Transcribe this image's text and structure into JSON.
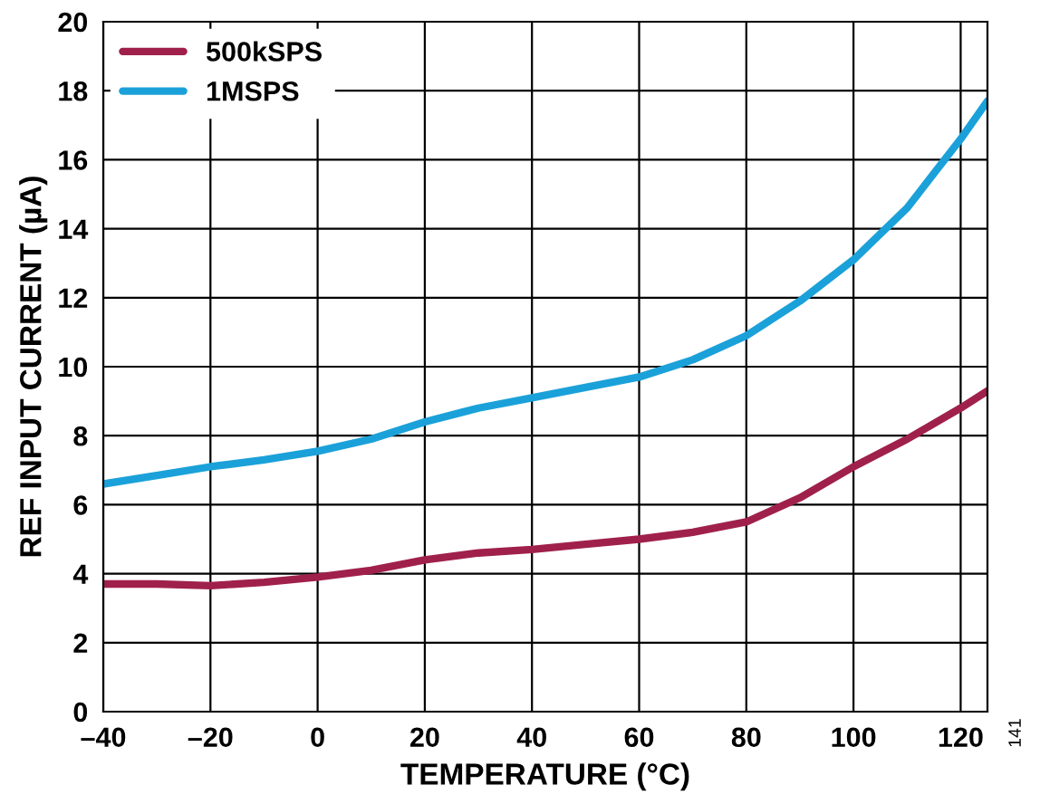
{
  "chart_data": {
    "type": "line",
    "xlabel": "TEMPERATURE (°C)",
    "ylabel": "REF INPUT CURRENT (µA)",
    "x": [
      -40,
      -30,
      -20,
      -10,
      0,
      10,
      20,
      30,
      40,
      50,
      60,
      70,
      80,
      90,
      100,
      110,
      120,
      125
    ],
    "series": [
      {
        "name": "500kSPS",
        "color": "#a0204c",
        "values": [
          3.7,
          3.7,
          3.65,
          3.75,
          3.9,
          4.1,
          4.4,
          4.6,
          4.7,
          4.85,
          5.0,
          5.2,
          5.5,
          6.2,
          7.1,
          7.9,
          8.8,
          9.3
        ]
      },
      {
        "name": "1MSPS",
        "color": "#1ba1d9",
        "values": [
          6.6,
          6.85,
          7.1,
          7.3,
          7.55,
          7.9,
          8.4,
          8.8,
          9.1,
          9.4,
          9.7,
          10.2,
          10.9,
          11.9,
          13.1,
          14.6,
          16.6,
          17.7
        ]
      }
    ],
    "xlim": [
      -40,
      125
    ],
    "xticks": [
      {
        "value": -40,
        "label": "–40"
      },
      {
        "value": -20,
        "label": "–20"
      },
      0,
      20,
      40,
      60,
      80,
      100,
      120
    ],
    "ylim": [
      0,
      20
    ],
    "yticks": [
      0,
      2,
      4,
      6,
      8,
      10,
      12,
      14,
      16,
      18,
      20
    ],
    "grid": true,
    "legend": "top left",
    "annotations": [
      "141"
    ]
  }
}
